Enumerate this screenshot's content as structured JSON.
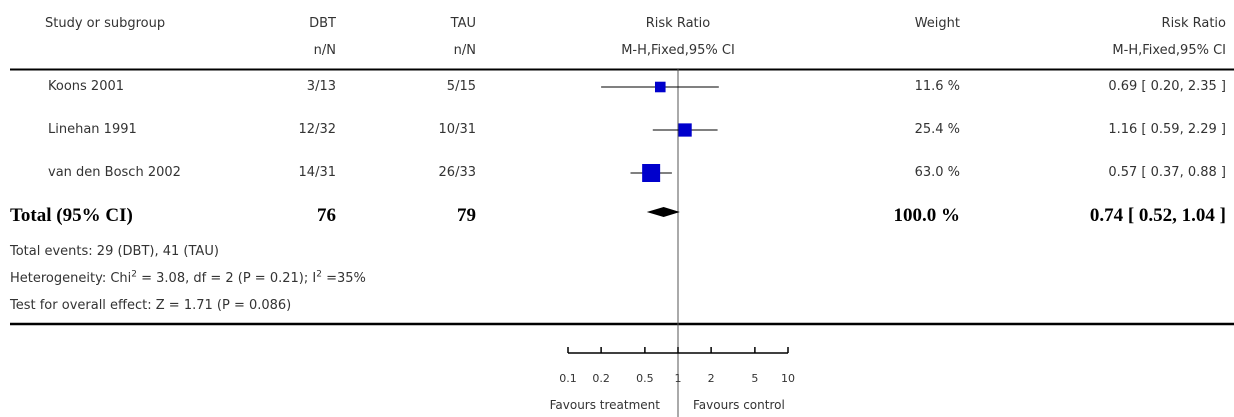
{
  "header": {
    "study_label": "Study or subgroup",
    "group1": "DBT",
    "group1_sub": "n/N",
    "group2": "TAU",
    "group2_sub": "n/N",
    "effect_label": "Risk Ratio",
    "effect_sub": "M-H,Fixed,95% CI",
    "weight_label": "Weight",
    "ci_label": "Risk Ratio",
    "ci_sub": "M-H,Fixed,95% CI"
  },
  "studies": [
    {
      "name": "Koons 2001",
      "dbt": "3/13",
      "tau": "5/15",
      "weight": "11.6 %",
      "ci_text": "0.69 [ 0.20, 2.35 ]"
    },
    {
      "name": "Linehan 1991",
      "dbt": "12/32",
      "tau": "10/31",
      "weight": "25.4 %",
      "ci_text": "1.16 [ 0.59, 2.29 ]"
    },
    {
      "name": "van den Bosch 2002",
      "dbt": "14/31",
      "tau": "26/33",
      "weight": "63.0 %",
      "ci_text": "0.57 [ 0.37, 0.88 ]"
    }
  ],
  "total": {
    "label": "Total (95% CI)",
    "dbt": "76",
    "tau": "79",
    "weight": "100.0 %",
    "ci_text": "0.74 [ 0.52, 1.04 ]"
  },
  "footer": {
    "events": "Total events: 29 (DBT), 41 (TAU)",
    "heterogeneity_a": "Heterogeneity: Chi",
    "heterogeneity_b": " = 3.08, df = 2 (P = 0.21); I",
    "heterogeneity_c": " =35%",
    "sup": "2",
    "overall": "Test for overall effect: Z = 1.71 (P = 0.086)"
  },
  "axis": {
    "favours_left": "Favours treatment",
    "favours_right": "Favours control"
  },
  "chart_data": {
    "type": "forest",
    "scale": "log",
    "xlim": [
      0.1,
      10
    ],
    "ticks": [
      {
        "value": 0.1,
        "label": "0.1"
      },
      {
        "value": 0.2,
        "label": "0.2"
      },
      {
        "value": 0.5,
        "label": "0.5"
      },
      {
        "value": 1,
        "label": "1"
      },
      {
        "value": 2,
        "label": "2"
      },
      {
        "value": 5,
        "label": "5"
      },
      {
        "value": 10,
        "label": "10"
      }
    ],
    "studies": [
      {
        "name": "Koons 2001",
        "rr": 0.69,
        "lo": 0.2,
        "hi": 2.35,
        "weight": 11.6
      },
      {
        "name": "Linehan 1991",
        "rr": 1.16,
        "lo": 0.59,
        "hi": 2.29,
        "weight": 25.4
      },
      {
        "name": "van den Bosch 2002",
        "rr": 0.57,
        "lo": 0.37,
        "hi": 0.88,
        "weight": 63.0
      }
    ],
    "total": {
      "rr": 0.74,
      "lo": 0.52,
      "hi": 1.04
    },
    "colors": {
      "marker": "#0000cc",
      "line": "#000000",
      "diamond": "#000000"
    }
  }
}
